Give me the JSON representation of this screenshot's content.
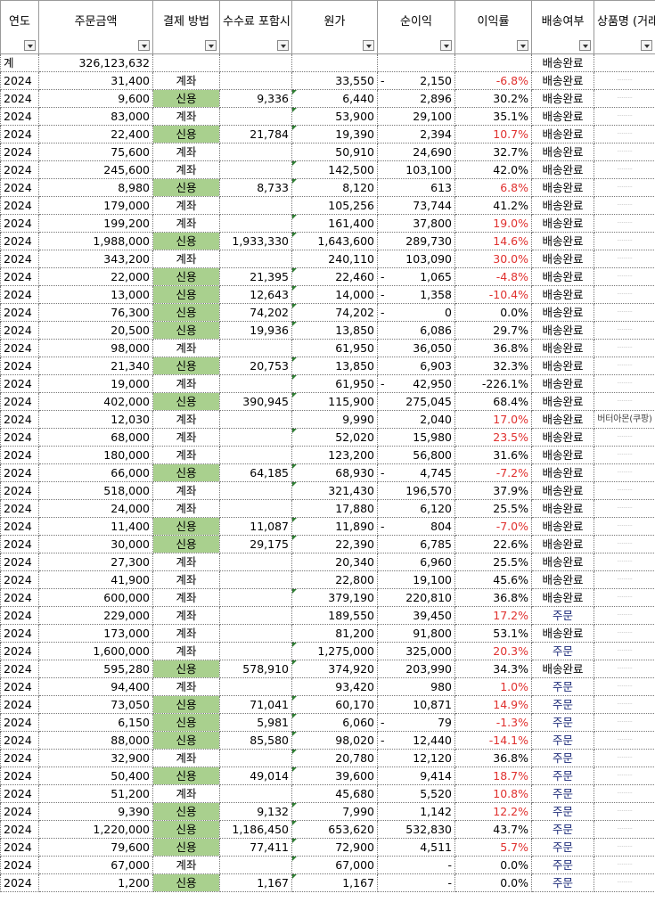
{
  "headers": {
    "year": "연도",
    "amount": "주문금액",
    "payment": "결제 방법",
    "fee": "수수료 포함시",
    "cost": "원가",
    "profit": "순이익",
    "margin": "이익률",
    "ship": "배송여부",
    "product": "상품명 (거래처)"
  },
  "total": {
    "label": "계",
    "amount": "326,123,632",
    "ship": "배송완료"
  },
  "colors": {
    "credit_bg": "#a9d08e",
    "negative_rate": "#e0312f",
    "order_status": "#1f2d7a"
  },
  "rows": [
    {
      "year": "2024",
      "amount": "31,400",
      "pay": "계좌",
      "fee": "",
      "cost": "33,550",
      "profit": "2,150",
      "neg": true,
      "rate": "-6.8%",
      "red": true,
      "ship": "배송완료",
      "product": "··········"
    },
    {
      "year": "2024",
      "amount": "9,600",
      "pay": "신용",
      "fee": "9,336",
      "cost": "6,440",
      "profit": "2,896",
      "neg": false,
      "rate": "30.2%",
      "red": false,
      "ship": "배송완료",
      "product": "··········"
    },
    {
      "year": "2024",
      "amount": "83,000",
      "pay": "계좌",
      "fee": "",
      "cost": "53,900",
      "profit": "29,100",
      "neg": false,
      "rate": "35.1%",
      "red": false,
      "ship": "배송완료",
      "product": "··········"
    },
    {
      "year": "2024",
      "amount": "22,400",
      "pay": "신용",
      "fee": "21,784",
      "cost": "19,390",
      "profit": "2,394",
      "neg": false,
      "rate": "10.7%",
      "red": true,
      "ship": "배송완료",
      "product": "··········"
    },
    {
      "year": "2024",
      "amount": "75,600",
      "pay": "계좌",
      "fee": "",
      "cost": "50,910",
      "profit": "24,690",
      "neg": false,
      "rate": "32.7%",
      "red": false,
      "ship": "배송완료",
      "product": "··········"
    },
    {
      "year": "2024",
      "amount": "245,600",
      "pay": "계좌",
      "fee": "",
      "cost": "142,500",
      "profit": "103,100",
      "neg": false,
      "rate": "42.0%",
      "red": false,
      "ship": "배송완료",
      "product": "··········"
    },
    {
      "year": "2024",
      "amount": "8,980",
      "pay": "신용",
      "fee": "8,733",
      "cost": "8,120",
      "profit": "613",
      "neg": false,
      "rate": "6.8%",
      "red": true,
      "ship": "배송완료",
      "product": "··········"
    },
    {
      "year": "2024",
      "amount": "179,000",
      "pay": "계좌",
      "fee": "",
      "cost": "105,256",
      "profit": "73,744",
      "neg": false,
      "rate": "41.2%",
      "red": false,
      "ship": "배송완료",
      "product": "··········"
    },
    {
      "year": "2024",
      "amount": "199,200",
      "pay": "계좌",
      "fee": "",
      "cost": "161,400",
      "profit": "37,800",
      "neg": false,
      "rate": "19.0%",
      "red": true,
      "ship": "배송완료",
      "product": "··········"
    },
    {
      "year": "2024",
      "amount": "1,988,000",
      "pay": "신용",
      "fee": "1,933,330",
      "cost": "1,643,600",
      "profit": "289,730",
      "neg": false,
      "rate": "14.6%",
      "red": true,
      "ship": "배송완료",
      "product": "··········"
    },
    {
      "year": "2024",
      "amount": "343,200",
      "pay": "계좌",
      "fee": "",
      "cost": "240,110",
      "profit": "103,090",
      "neg": false,
      "rate": "30.0%",
      "red": true,
      "ship": "배송완료",
      "product": "··········"
    },
    {
      "year": "2024",
      "amount": "22,000",
      "pay": "신용",
      "fee": "21,395",
      "cost": "22,460",
      "profit": "1,065",
      "neg": true,
      "rate": "-4.8%",
      "red": true,
      "ship": "배송완료",
      "product": "··········"
    },
    {
      "year": "2024",
      "amount": "13,000",
      "pay": "신용",
      "fee": "12,643",
      "cost": "14,000",
      "profit": "1,358",
      "neg": true,
      "rate": "-10.4%",
      "red": true,
      "ship": "배송완료",
      "product": "··········"
    },
    {
      "year": "2024",
      "amount": "76,300",
      "pay": "신용",
      "fee": "74,202",
      "cost": "74,202",
      "profit": "0",
      "neg": true,
      "rate": "0.0%",
      "red": false,
      "ship": "배송완료",
      "product": "··········"
    },
    {
      "year": "2024",
      "amount": "20,500",
      "pay": "신용",
      "fee": "19,936",
      "cost": "13,850",
      "profit": "6,086",
      "neg": false,
      "rate": "29.7%",
      "red": false,
      "ship": "배송완료",
      "product": "··········"
    },
    {
      "year": "2024",
      "amount": "98,000",
      "pay": "계좌",
      "fee": "",
      "cost": "61,950",
      "profit": "36,050",
      "neg": false,
      "rate": "36.8%",
      "red": false,
      "ship": "배송완료",
      "product": "··········"
    },
    {
      "year": "2024",
      "amount": "21,340",
      "pay": "신용",
      "fee": "20,753",
      "cost": "13,850",
      "profit": "6,903",
      "neg": false,
      "rate": "32.3%",
      "red": false,
      "ship": "배송완료",
      "product": "··········"
    },
    {
      "year": "2024",
      "amount": "19,000",
      "pay": "계좌",
      "fee": "",
      "cost": "61,950",
      "profit": "42,950",
      "neg": true,
      "rate": "-226.1%",
      "red": false,
      "ship": "배송완료",
      "product": "··········"
    },
    {
      "year": "2024",
      "amount": "402,000",
      "pay": "신용",
      "fee": "390,945",
      "cost": "115,900",
      "profit": "275,045",
      "neg": false,
      "rate": "68.4%",
      "red": false,
      "ship": "배송완료",
      "product": "··········"
    },
    {
      "year": "2024",
      "amount": "12,030",
      "pay": "계좌",
      "fee": "",
      "cost": "9,990",
      "profit": "2,040",
      "neg": false,
      "rate": "17.0%",
      "red": true,
      "ship": "배송완료",
      "product": "버터아몬(쿠팡)"
    },
    {
      "year": "2024",
      "amount": "68,000",
      "pay": "계좌",
      "fee": "",
      "cost": "52,020",
      "profit": "15,980",
      "neg": false,
      "rate": "23.5%",
      "red": true,
      "ship": "배송완료",
      "product": "··········"
    },
    {
      "year": "2024",
      "amount": "180,000",
      "pay": "계좌",
      "fee": "",
      "cost": "123,200",
      "profit": "56,800",
      "neg": false,
      "rate": "31.6%",
      "red": false,
      "ship": "배송완료",
      "product": "··········"
    },
    {
      "year": "2024",
      "amount": "66,000",
      "pay": "신용",
      "fee": "64,185",
      "cost": "68,930",
      "profit": "4,745",
      "neg": true,
      "rate": "-7.2%",
      "red": true,
      "ship": "배송완료",
      "product": "··········"
    },
    {
      "year": "2024",
      "amount": "518,000",
      "pay": "계좌",
      "fee": "",
      "cost": "321,430",
      "profit": "196,570",
      "neg": false,
      "rate": "37.9%",
      "red": false,
      "ship": "배송완료",
      "product": "··········"
    },
    {
      "year": "2024",
      "amount": "24,000",
      "pay": "계좌",
      "fee": "",
      "cost": "17,880",
      "profit": "6,120",
      "neg": false,
      "rate": "25.5%",
      "red": false,
      "ship": "배송완료",
      "product": "··········"
    },
    {
      "year": "2024",
      "amount": "11,400",
      "pay": "신용",
      "fee": "11,087",
      "cost": "11,890",
      "profit": "804",
      "neg": true,
      "rate": "-7.0%",
      "red": true,
      "ship": "배송완료",
      "product": "··········"
    },
    {
      "year": "2024",
      "amount": "30,000",
      "pay": "신용",
      "fee": "29,175",
      "cost": "22,390",
      "profit": "6,785",
      "neg": false,
      "rate": "22.6%",
      "red": false,
      "ship": "배송완료",
      "product": "··········"
    },
    {
      "year": "2024",
      "amount": "27,300",
      "pay": "계좌",
      "fee": "",
      "cost": "20,340",
      "profit": "6,960",
      "neg": false,
      "rate": "25.5%",
      "red": false,
      "ship": "배송완료",
      "product": "··········"
    },
    {
      "year": "2024",
      "amount": "41,900",
      "pay": "계좌",
      "fee": "",
      "cost": "22,800",
      "profit": "19,100",
      "neg": false,
      "rate": "45.6%",
      "red": false,
      "ship": "배송완료",
      "product": "··········"
    },
    {
      "year": "2024",
      "amount": "600,000",
      "pay": "계좌",
      "fee": "",
      "cost": "379,190",
      "profit": "220,810",
      "neg": false,
      "rate": "36.8%",
      "red": false,
      "ship": "배송완료",
      "product": "··········"
    },
    {
      "year": "2024",
      "amount": "229,000",
      "pay": "계좌",
      "fee": "",
      "cost": "189,550",
      "profit": "39,450",
      "neg": false,
      "rate": "17.2%",
      "red": true,
      "ship": "주문",
      "product": "··········"
    },
    {
      "year": "2024",
      "amount": "173,000",
      "pay": "계좌",
      "fee": "",
      "cost": "81,200",
      "profit": "91,800",
      "neg": false,
      "rate": "53.1%",
      "red": false,
      "ship": "배송완료",
      "product": "··········"
    },
    {
      "year": "2024",
      "amount": "1,600,000",
      "pay": "계좌",
      "fee": "",
      "cost": "1,275,000",
      "profit": "325,000",
      "neg": false,
      "rate": "20.3%",
      "red": true,
      "ship": "주문",
      "product": "··········"
    },
    {
      "year": "2024",
      "amount": "595,280",
      "pay": "신용",
      "fee": "578,910",
      "cost": "374,920",
      "profit": "203,990",
      "neg": false,
      "rate": "34.3%",
      "red": false,
      "ship": "배송완료",
      "product": "··········"
    },
    {
      "year": "2024",
      "amount": "94,400",
      "pay": "계좌",
      "fee": "",
      "cost": "93,420",
      "profit": "980",
      "neg": false,
      "rate": "1.0%",
      "red": true,
      "ship": "주문",
      "product": "··········"
    },
    {
      "year": "2024",
      "amount": "73,050",
      "pay": "신용",
      "fee": "71,041",
      "cost": "60,170",
      "profit": "10,871",
      "neg": false,
      "rate": "14.9%",
      "red": true,
      "ship": "주문",
      "product": "··········"
    },
    {
      "year": "2024",
      "amount": "6,150",
      "pay": "신용",
      "fee": "5,981",
      "cost": "6,060",
      "profit": "79",
      "neg": true,
      "rate": "-1.3%",
      "red": true,
      "ship": "주문",
      "product": "··········"
    },
    {
      "year": "2024",
      "amount": "88,000",
      "pay": "신용",
      "fee": "85,580",
      "cost": "98,020",
      "profit": "12,440",
      "neg": true,
      "rate": "-14.1%",
      "red": true,
      "ship": "주문",
      "product": "··········"
    },
    {
      "year": "2024",
      "amount": "32,900",
      "pay": "계좌",
      "fee": "",
      "cost": "20,780",
      "profit": "12,120",
      "neg": false,
      "rate": "36.8%",
      "red": false,
      "ship": "주문",
      "product": "··········"
    },
    {
      "year": "2024",
      "amount": "50,400",
      "pay": "신용",
      "fee": "49,014",
      "cost": "39,600",
      "profit": "9,414",
      "neg": false,
      "rate": "18.7%",
      "red": true,
      "ship": "주문",
      "product": "··········"
    },
    {
      "year": "2024",
      "amount": "51,200",
      "pay": "계좌",
      "fee": "",
      "cost": "45,680",
      "profit": "5,520",
      "neg": false,
      "rate": "10.8%",
      "red": true,
      "ship": "주문",
      "product": "··········"
    },
    {
      "year": "2024",
      "amount": "9,390",
      "pay": "신용",
      "fee": "9,132",
      "cost": "7,990",
      "profit": "1,142",
      "neg": false,
      "rate": "12.2%",
      "red": true,
      "ship": "주문",
      "product": "··········"
    },
    {
      "year": "2024",
      "amount": "1,220,000",
      "pay": "신용",
      "fee": "1,186,450",
      "cost": "653,620",
      "profit": "532,830",
      "neg": false,
      "rate": "43.7%",
      "red": false,
      "ship": "주문",
      "product": "··········"
    },
    {
      "year": "2024",
      "amount": "79,600",
      "pay": "신용",
      "fee": "77,411",
      "cost": "72,900",
      "profit": "4,511",
      "neg": false,
      "rate": "5.7%",
      "red": true,
      "ship": "주문",
      "product": "··········"
    },
    {
      "year": "2024",
      "amount": "67,000",
      "pay": "계좌",
      "fee": "",
      "cost": "67,000",
      "profit": "-",
      "neg": false,
      "rate": "0.0%",
      "red": false,
      "ship": "주문",
      "product": "··········"
    },
    {
      "year": "2024",
      "amount": "1,200",
      "pay": "신용",
      "fee": "1,167",
      "cost": "1,167",
      "profit": "-",
      "neg": false,
      "rate": "0.0%",
      "red": false,
      "ship": "주문",
      "product": "··········"
    }
  ]
}
